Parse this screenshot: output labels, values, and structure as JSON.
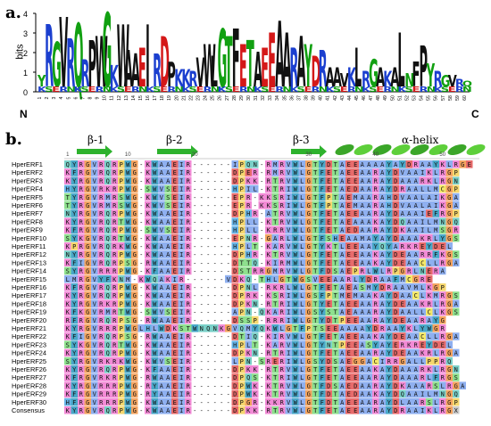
{
  "panel_labels": {
    "a": "a.",
    "b": "b."
  },
  "logo": {
    "y_axis_label": "bits",
    "y_ticks": [
      "0",
      "1",
      "2",
      "3",
      "4"
    ],
    "n_terminus": "N",
    "c_terminus": "C",
    "positions": [
      "1",
      "2",
      "3",
      "4",
      "5",
      "6",
      "7",
      "8",
      "9",
      "10",
      "11",
      "12",
      "13",
      "14",
      "15",
      "16",
      "17",
      "18",
      "19",
      "20",
      "21",
      "22",
      "23",
      "24",
      "25",
      "26",
      "27",
      "28",
      "29",
      "30",
      "31",
      "32",
      "33",
      "34",
      "35",
      "36",
      "37",
      "38",
      "39",
      "40",
      "41",
      "42",
      "43",
      "44",
      "45",
      "46",
      "47",
      "48",
      "49",
      "50",
      "51",
      "52",
      "53",
      "54",
      "55",
      "56",
      "57",
      "58",
      "59",
      "60"
    ],
    "consensus_letters": "YRGVRQRPWGKWAAEIRDPKKRVWLGTFETAEEAARAYDRAAVKLRGAKALNFP"
  },
  "secondary_structure": {
    "beta1": "β-1",
    "beta2": "β-2",
    "beta3": "β-3",
    "alpha_helix": "α-helix"
  },
  "ruler": [
    "1",
    "10",
    "20",
    "30",
    "40",
    "50",
    "60"
  ],
  "alignment": {
    "names": [
      "HperERF1",
      "HperERF2",
      "HperERF3",
      "HperERF4",
      "HperERF5",
      "HperERF6",
      "HperERF7",
      "HperERF8",
      "HperERF9",
      "HperERF10",
      "HperERF11",
      "HperERF12",
      "HperERF13",
      "HperERF14",
      "HperERF15",
      "HperERF16",
      "HperERF17",
      "HperERF18",
      "HperERF19",
      "HperERF20",
      "HperERF21",
      "HperERF22",
      "HperERF23",
      "HperERF24",
      "HperERF25",
      "HperERF26",
      "HperERF27",
      "HperERF28",
      "HperERF29",
      "HperERF30",
      "Consensus"
    ],
    "sequences": [
      "QYRGVRQRPWG-KWAAEIR------IPQN-RMRVWLGTYDTAEEAAAAYAYDRAAYKLRGE",
      "KFRGVRQRPWG-KWAAEIR------DPER-RMRVWLGTFETAEEAARAYDVAAIKLRGP",
      "KYRGVRQRPWG-KWAAEIR------DPKK-RTRVWLGTFETAEEAARAYDAAARKLRGN",
      "HYRGVRKRPWG-SWVSEIR------HPIL-KTRIWLGTFETAEDAARAYDRAALLMCGP",
      "TYRGVRMRSWG-KWVSEIR------EPR-KKSRIWLGTFPTAEMAARAHDVAALAIKGA",
      "TYRGVRMRSWG-KWVSEIR------EPR-KKSRIWLGTFPTAEMAARAHDVAALAIKGA",
      "NYRGVRQRPWG-KWAAEIR------DPHR-ATRVWLGTFETAEEAARAYDAAAIEFRGP",
      "KYRGVRQRTWG-KWAAEIR------HPLL-KTRVWLGTFETAEAAAKAYDQAAILMNGQ",
      "KFRGVRQRPWG-SWVSEIR------HPLL-KRRVWLGTFETAEDAARAYDKAAILMSGR",
      "SYKGVRQRTWG-KWAAEIR------EPNR-GARLWLGTFSHEAAMAYAYDAAAKRLYGS",
      "KPRGVRQRKWG-KWAAEIR------HPLT-KARVWLGTYKTLEEAAYQYARKREYDEL",
      "NYRGVRQRPWG-KWAAEIR------DPHR-KTRVWLGTFETAEEAAKAYDEAARRFKGS",
      "KFIGVRQRPSG-RWAAEIR------DTTQ-KIRMWLGTFETAEEAAKAYDEAACLLRGA",
      "SYRGVRRRPWG-KFAAEIR------DSTRRGMRVWLGTFDSAEPRLWLRPGRLNERA",
      "LMRGVYFKNM-KWQAKIR------VDKQ-THLGTWGSVEEAARLYDRAAFMCGRE",
      "KFRGVRQRPWG-KWAAEIR------DPNL-RKRLWLGTFETAEASMYDRAAVMLKGP",
      "KYRGVRQRPWG-KWAAEIR------DPRK-KSRIWLGSFPTMEMAAKAYDAACLKMRGS",
      "KYRGVRKRPWG-KWAAEIR------DPKN-RTRIWLGTYETAEEAARAYDEAAKRLRGA",
      "KFKGVRMRTWG-SWVSEIR------APN-QKARIWLGSYSTAEAAARAYDAALLCLKGS",
      "RFRGVRQRPSG-RWAAEIR------DSSP-RRRIWLGTYDTPEEAARAYDEAARAYG",
      "KYRGVRRRPWGLHLWDKSTWNQNKGVQMYQKWLGTFPTSEEAAAAYDRAAYKLYWGR",
      "KFIGVRQRPSG-RWAAEIR------DTIQ-KIRVWLGTFETAEEAAKAYDEAACLLRGA",
      "SYKGVRQRTWG-KWAAEIR------HPLT-KARVWLGTYNTPEEASYAYERKREYDEL",
      "KYRGVRQRPWG-KWAAEIR------DPKN-RTRIWLGTFETAEEAARAYDEAAKRLRGA",
      "SYRGVRKRKWG-KWVSEIR------LPN-SRERIWLGSYDSAEGGACIRRGALLPPRQ",
      "KYRGVRQRPWG-KFAAEIR------DPKK-RTRVWLGTFETAEEAAKAYDAAARKLRGN",
      "KFRGVRKRPWG-RWAAEIR------DPQS-KTRIWLGTFETAEEAARAYDAAARLFRGS",
      "KYRGVRRRPWG-RYAAEIR------DPWK-KTRVWLGTFDSAEDAARAYDKAAARSLRGA",
      "KFRGVRRRPWG-RYAAEIR------DPWK-KTRVWLGTFDTAEDAAKAYDQAAILMNGQ",
      "HFRGVRRRPWG-KWAAEIR------DPGR-KKRVWLGTFDTAEEAARAYDLAARSLRGP",
      "KYRGVRQRPWG-KWAAEIR------DPKK-RTRVWLGTFETAEEAARAYDRAAIKLRGX"
    ]
  }
}
